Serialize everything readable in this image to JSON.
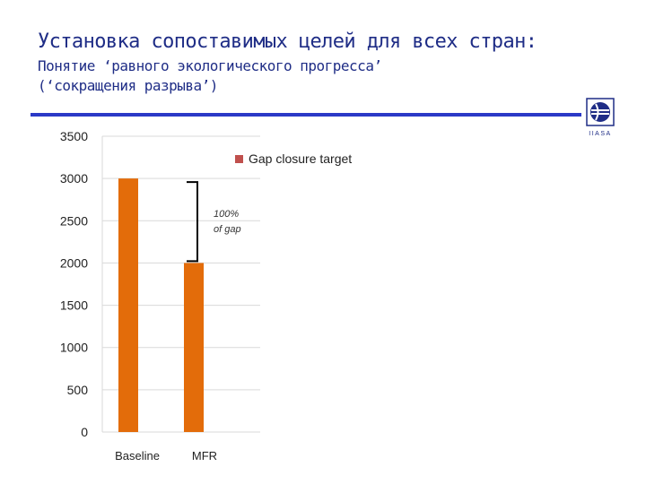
{
  "header": {
    "title": "Установка сопоставимых целей для всех стран:",
    "subtitle_line1": "Понятие ‘равного экологического прогресса’",
    "subtitle_line2": "(‘сокращения разрыва’)"
  },
  "logo": {
    "text": "IIASA",
    "icon": "iiasa-globe-logo"
  },
  "colors": {
    "accent": "#2b39c7",
    "title": "#1f2d86",
    "bar": "#e36c0a"
  },
  "chart_data": {
    "type": "bar",
    "categories": [
      "Baseline",
      "MFR"
    ],
    "series": [
      {
        "name": "Gap closure target",
        "values": [
          3000,
          2000
        ]
      }
    ],
    "ylim": [
      0,
      3500
    ],
    "yticks": [
      0,
      500,
      1000,
      1500,
      2000,
      2500,
      3000,
      3500
    ],
    "grid": true,
    "legend": "top-right",
    "annotation": {
      "line1": "100%",
      "line2": "of gap"
    }
  }
}
